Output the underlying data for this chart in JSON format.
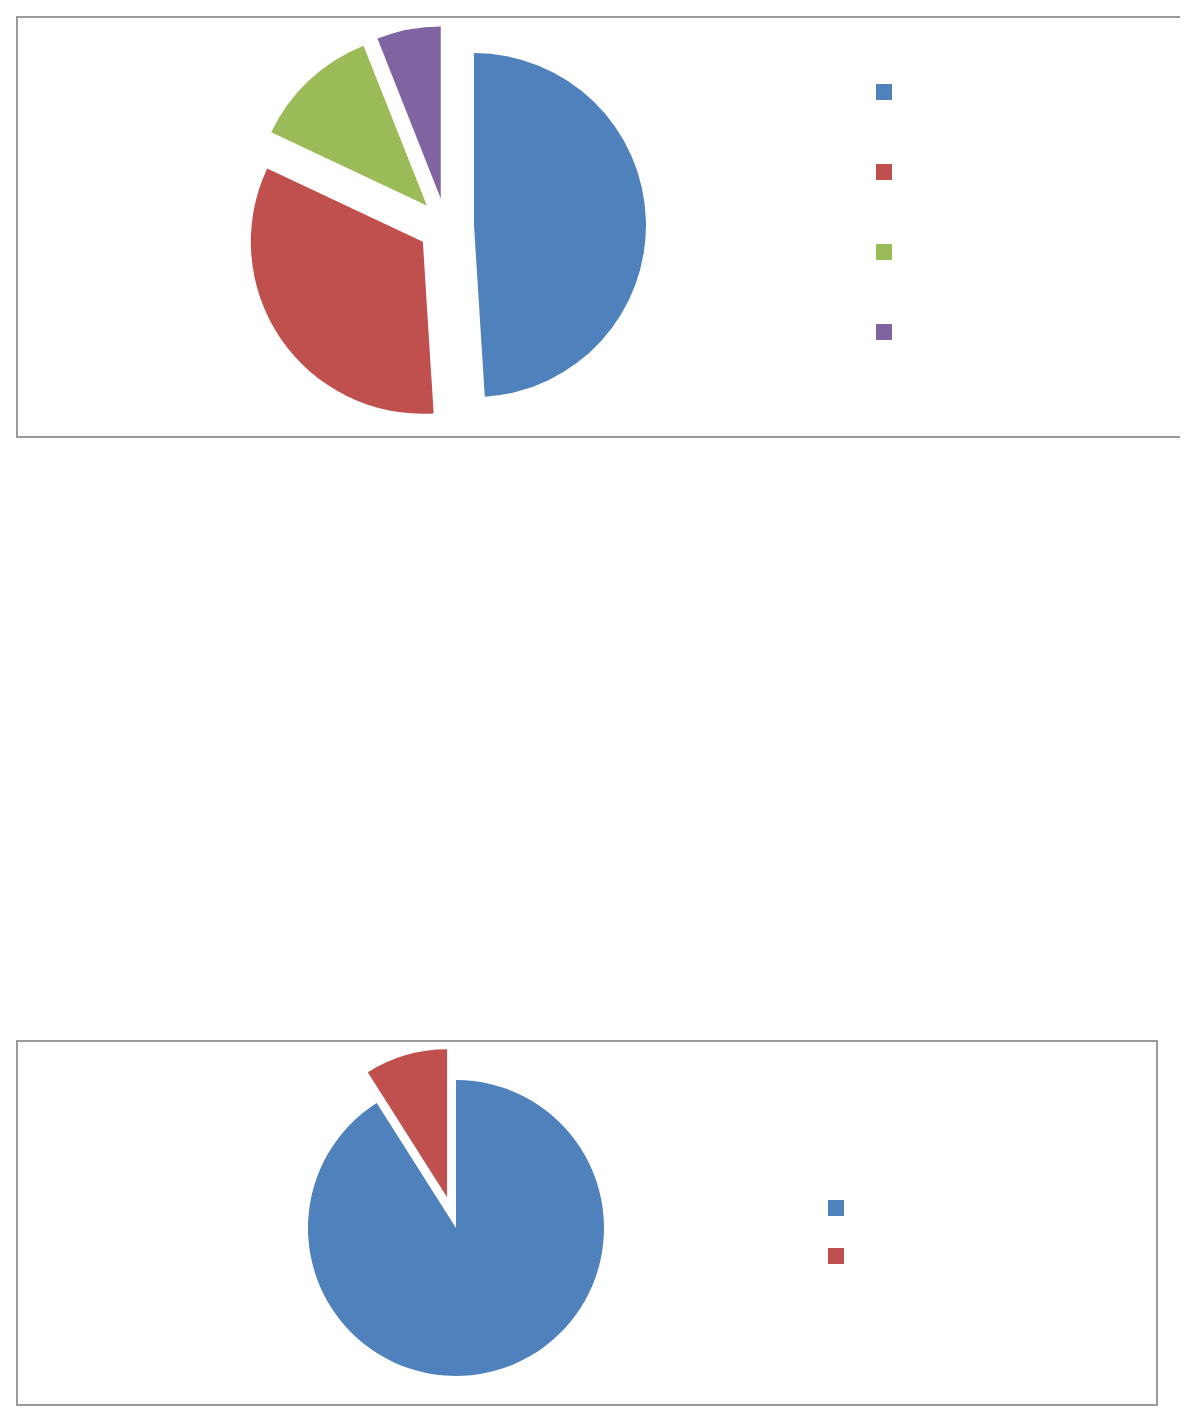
{
  "chart_data": [
    {
      "type": "pie",
      "categories": [
        null,
        null,
        null,
        null
      ],
      "values": [
        49,
        33,
        12,
        6
      ],
      "colors": [
        "#4f81bd",
        "#c0504d",
        "#9bbb59",
        "#8064a2"
      ]
    },
    {
      "type": "pie",
      "categories": [
        null,
        null
      ],
      "values": [
        91,
        9
      ],
      "colors": [
        "#4f81bd",
        "#c0504d"
      ]
    }
  ]
}
